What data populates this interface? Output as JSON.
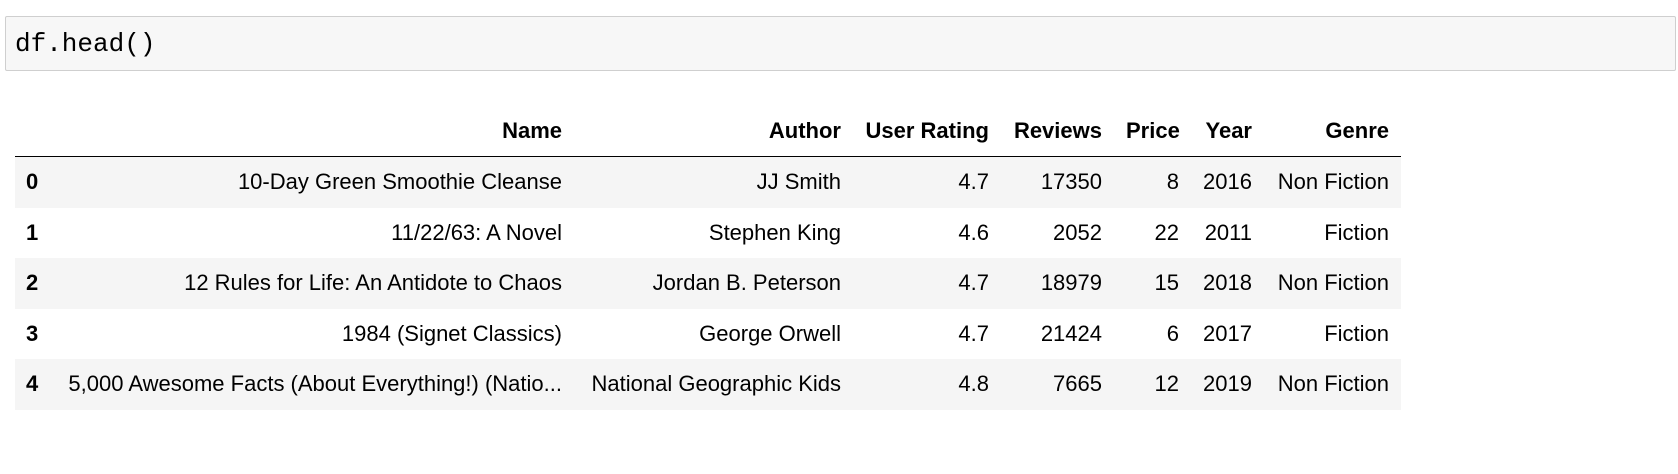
{
  "input": {
    "code": "df.head()"
  },
  "table": {
    "columns": [
      "Name",
      "Author",
      "User Rating",
      "Reviews",
      "Price",
      "Year",
      "Genre"
    ],
    "rows": [
      {
        "index": 0,
        "cells": [
          "10-Day Green Smoothie Cleanse",
          "JJ Smith",
          4.7,
          17350,
          8,
          2016,
          "Non Fiction"
        ]
      },
      {
        "index": 1,
        "cells": [
          "11/22/63: A Novel",
          "Stephen King",
          4.6,
          2052,
          22,
          2011,
          "Fiction"
        ]
      },
      {
        "index": 2,
        "cells": [
          "12 Rules for Life: An Antidote to Chaos",
          "Jordan B. Peterson",
          4.7,
          18979,
          15,
          2018,
          "Non Fiction"
        ]
      },
      {
        "index": 3,
        "cells": [
          "1984 (Signet Classics)",
          "George Orwell",
          4.7,
          21424,
          6,
          2017,
          "Fiction"
        ]
      },
      {
        "index": 4,
        "cells": [
          "5,000 Awesome Facts (About Everything!) (Natio...",
          "National Geographic Kids",
          4.8,
          7665,
          12,
          2019,
          "Non Fiction"
        ]
      }
    ]
  }
}
